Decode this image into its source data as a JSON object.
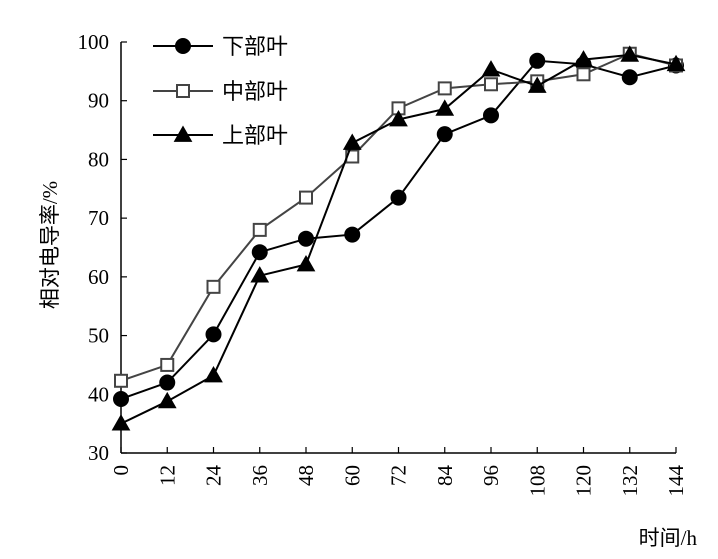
{
  "chart_data": {
    "type": "line",
    "xlabel": "时间/h",
    "ylabel": "相对电导率/%",
    "x": [
      0,
      12,
      24,
      36,
      48,
      60,
      72,
      84,
      96,
      108,
      120,
      132,
      144
    ],
    "xlim": [
      0,
      144
    ],
    "ylim": [
      30,
      100
    ],
    "yticks": [
      30,
      40,
      50,
      60,
      70,
      80,
      90,
      100
    ],
    "grid": false,
    "legend_position": "top-left",
    "series": [
      {
        "name": "下部叶",
        "marker": "filled-circle",
        "color": "#000000",
        "values": [
          39.2,
          42.0,
          50.2,
          64.2,
          66.5,
          67.2,
          73.5,
          84.3,
          87.5,
          96.8,
          96.2,
          94.0,
          96.0
        ]
      },
      {
        "name": "中部叶",
        "marker": "open-square",
        "color": "#444444",
        "values": [
          42.3,
          45.0,
          58.3,
          68.0,
          73.5,
          80.5,
          88.7,
          92.1,
          92.8,
          93.3,
          94.5,
          98.0,
          96.0
        ]
      },
      {
        "name": "上部叶",
        "marker": "filled-triangle",
        "color": "#000000",
        "values": [
          35.0,
          38.8,
          43.2,
          60.2,
          62.1,
          82.8,
          86.8,
          88.6,
          95.3,
          92.5,
          97.0,
          97.8,
          96.2
        ]
      }
    ]
  }
}
